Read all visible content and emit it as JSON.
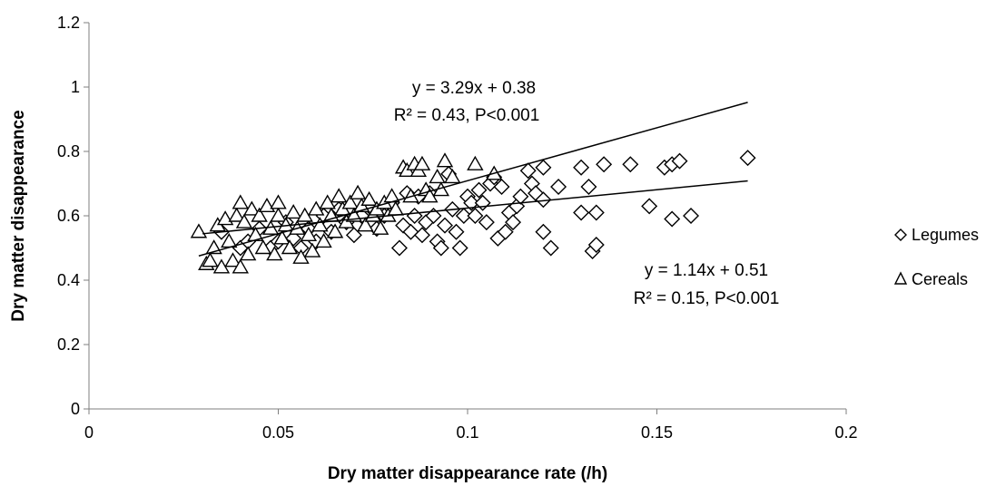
{
  "chart_data": {
    "type": "scatter",
    "xlabel": "Dry matter disappearance rate (/h)",
    "ylabel": "Dry matter disappearance",
    "xlim": [
      0,
      0.2
    ],
    "ylim": [
      0,
      1.2
    ],
    "x_ticks": [
      "0",
      "0.05",
      "0.1",
      "0.15",
      "0.2"
    ],
    "y_ticks": [
      "0",
      "0.2",
      "0.4",
      "0.6",
      "0.8",
      "1",
      "1.2"
    ],
    "grid": false,
    "legend_position": "right",
    "series": [
      {
        "name": "Legumes",
        "marker": "diamond",
        "color": "#000000",
        "points": [
          [
            0.035,
            0.55
          ],
          [
            0.04,
            0.5
          ],
          [
            0.042,
            0.52
          ],
          [
            0.045,
            0.56
          ],
          [
            0.048,
            0.5
          ],
          [
            0.05,
            0.52
          ],
          [
            0.052,
            0.58
          ],
          [
            0.054,
            0.53
          ],
          [
            0.056,
            0.5
          ],
          [
            0.058,
            0.56
          ],
          [
            0.06,
            0.52
          ],
          [
            0.062,
            0.6
          ],
          [
            0.064,
            0.55
          ],
          [
            0.066,
            0.62
          ],
          [
            0.068,
            0.58
          ],
          [
            0.07,
            0.54
          ],
          [
            0.072,
            0.6
          ],
          [
            0.074,
            0.63
          ],
          [
            0.076,
            0.56
          ],
          [
            0.078,
            0.6
          ],
          [
            0.08,
            0.64
          ],
          [
            0.082,
            0.5
          ],
          [
            0.083,
            0.57
          ],
          [
            0.084,
            0.67
          ],
          [
            0.085,
            0.55
          ],
          [
            0.086,
            0.6
          ],
          [
            0.087,
            0.66
          ],
          [
            0.088,
            0.54
          ],
          [
            0.089,
            0.58
          ],
          [
            0.09,
            0.67
          ],
          [
            0.091,
            0.6
          ],
          [
            0.092,
            0.52
          ],
          [
            0.093,
            0.5
          ],
          [
            0.094,
            0.57
          ],
          [
            0.095,
            0.73
          ],
          [
            0.096,
            0.62
          ],
          [
            0.097,
            0.55
          ],
          [
            0.098,
            0.5
          ],
          [
            0.099,
            0.6
          ],
          [
            0.1,
            0.66
          ],
          [
            0.101,
            0.64
          ],
          [
            0.102,
            0.6
          ],
          [
            0.103,
            0.68
          ],
          [
            0.104,
            0.64
          ],
          [
            0.105,
            0.58
          ],
          [
            0.106,
            0.7
          ],
          [
            0.107,
            0.72
          ],
          [
            0.108,
            0.53
          ],
          [
            0.109,
            0.69
          ],
          [
            0.11,
            0.55
          ],
          [
            0.111,
            0.61
          ],
          [
            0.112,
            0.58
          ],
          [
            0.113,
            0.63
          ],
          [
            0.114,
            0.66
          ],
          [
            0.116,
            0.74
          ],
          [
            0.117,
            0.7
          ],
          [
            0.118,
            0.67
          ],
          [
            0.12,
            0.75
          ],
          [
            0.12,
            0.65
          ],
          [
            0.12,
            0.55
          ],
          [
            0.122,
            0.5
          ],
          [
            0.124,
            0.69
          ],
          [
            0.13,
            0.75
          ],
          [
            0.13,
            0.61
          ],
          [
            0.132,
            0.69
          ],
          [
            0.133,
            0.49
          ],
          [
            0.134,
            0.61
          ],
          [
            0.134,
            0.51
          ],
          [
            0.136,
            0.76
          ],
          [
            0.143,
            0.76
          ],
          [
            0.148,
            0.63
          ],
          [
            0.152,
            0.75
          ],
          [
            0.154,
            0.76
          ],
          [
            0.154,
            0.59
          ],
          [
            0.156,
            0.77
          ],
          [
            0.159,
            0.6
          ],
          [
            0.174,
            0.78
          ]
        ],
        "trendline": {
          "equation": "y = 1.14x + 0.51",
          "stats": "R² = 0.15, P<0.001",
          "slope": 1.14,
          "intercept": 0.51,
          "x_range": [
            0.03,
            0.174
          ]
        }
      },
      {
        "name": "Cereals",
        "marker": "triangle",
        "color": "#000000",
        "points": [
          [
            0.029,
            0.55
          ],
          [
            0.031,
            0.45
          ],
          [
            0.032,
            0.46
          ],
          [
            0.033,
            0.5
          ],
          [
            0.034,
            0.57
          ],
          [
            0.035,
            0.44
          ],
          [
            0.036,
            0.59
          ],
          [
            0.037,
            0.52
          ],
          [
            0.038,
            0.46
          ],
          [
            0.039,
            0.6
          ],
          [
            0.04,
            0.64
          ],
          [
            0.04,
            0.44
          ],
          [
            0.041,
            0.58
          ],
          [
            0.042,
            0.48
          ],
          [
            0.043,
            0.62
          ],
          [
            0.044,
            0.54
          ],
          [
            0.045,
            0.6
          ],
          [
            0.046,
            0.5
          ],
          [
            0.047,
            0.63
          ],
          [
            0.048,
            0.56
          ],
          [
            0.049,
            0.48
          ],
          [
            0.05,
            0.6
          ],
          [
            0.05,
            0.64
          ],
          [
            0.051,
            0.53
          ],
          [
            0.052,
            0.57
          ],
          [
            0.053,
            0.5
          ],
          [
            0.054,
            0.61
          ],
          [
            0.055,
            0.56
          ],
          [
            0.056,
            0.47
          ],
          [
            0.057,
            0.6
          ],
          [
            0.058,
            0.54
          ],
          [
            0.059,
            0.49
          ],
          [
            0.06,
            0.62
          ],
          [
            0.061,
            0.57
          ],
          [
            0.062,
            0.52
          ],
          [
            0.063,
            0.64
          ],
          [
            0.064,
            0.6
          ],
          [
            0.065,
            0.55
          ],
          [
            0.066,
            0.66
          ],
          [
            0.067,
            0.62
          ],
          [
            0.068,
            0.58
          ],
          [
            0.069,
            0.64
          ],
          [
            0.07,
            0.6
          ],
          [
            0.071,
            0.67
          ],
          [
            0.072,
            0.63
          ],
          [
            0.073,
            0.57
          ],
          [
            0.074,
            0.65
          ],
          [
            0.075,
            0.6
          ],
          [
            0.076,
            0.62
          ],
          [
            0.077,
            0.56
          ],
          [
            0.078,
            0.64
          ],
          [
            0.079,
            0.6
          ],
          [
            0.08,
            0.66
          ],
          [
            0.081,
            0.62
          ],
          [
            0.083,
            0.75
          ],
          [
            0.084,
            0.74
          ],
          [
            0.085,
            0.66
          ],
          [
            0.086,
            0.76
          ],
          [
            0.087,
            0.74
          ],
          [
            0.088,
            0.76
          ],
          [
            0.089,
            0.68
          ],
          [
            0.09,
            0.66
          ],
          [
            0.092,
            0.72
          ],
          [
            0.093,
            0.68
          ],
          [
            0.094,
            0.77
          ],
          [
            0.096,
            0.72
          ],
          [
            0.102,
            0.76
          ],
          [
            0.107,
            0.73
          ]
        ],
        "trendline": {
          "equation": "y = 3.29x + 0.38",
          "stats": "R² = 0.43, P<0.001",
          "slope": 3.29,
          "intercept": 0.38,
          "x_range": [
            0.029,
            0.174
          ]
        }
      }
    ]
  }
}
